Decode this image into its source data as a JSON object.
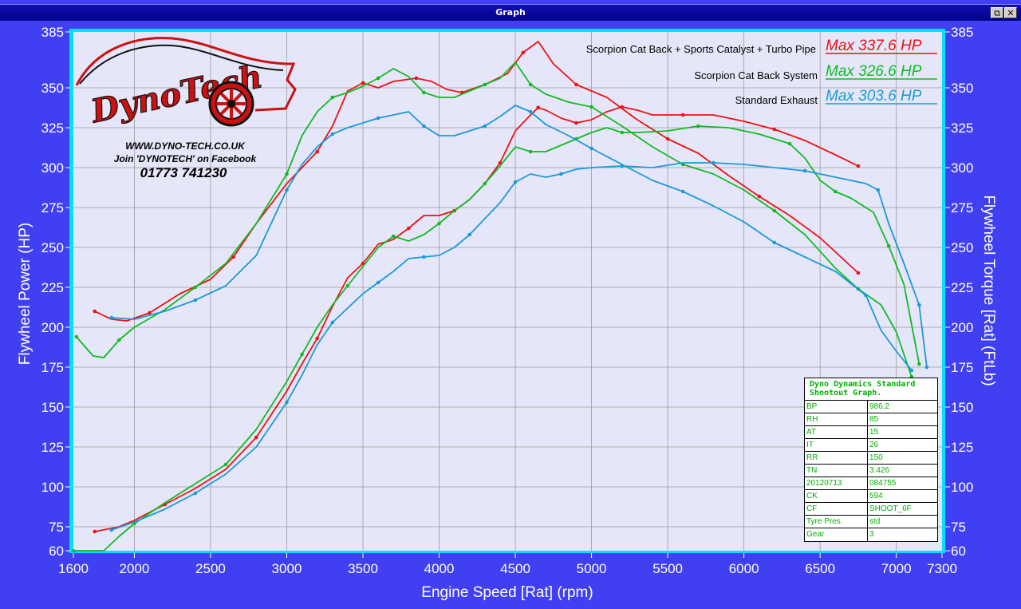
{
  "window": {
    "title": "Graph",
    "restore_glyph": "⧉",
    "close_glyph": "✕"
  },
  "colors": {
    "red": "#ee1111",
    "green": "#11bb22",
    "blue": "#1a9ad8",
    "plot_bg": "#e6e6fa",
    "frame": "#00e0ff"
  },
  "logo": {
    "brand_text": "DynoTech",
    "website": "WWW.DYNO-TECH.CO.UK",
    "facebook": "Join 'DYNOTECH' on Facebook",
    "phone": "01773 741230"
  },
  "info_box": {
    "title_line1": "Dyno Dynamics Standard",
    "title_line2": "Shootout Graph.",
    "rows": [
      [
        "BP",
        "986.2"
      ],
      [
        "RH",
        "85"
      ],
      [
        "AT",
        "15"
      ],
      [
        "IT",
        "26"
      ],
      [
        "RR",
        "150"
      ],
      [
        "TN",
        "3.426"
      ],
      [
        "20120713",
        "084755"
      ],
      [
        "CK",
        "594"
      ],
      [
        "CF",
        "SHOOT_6F"
      ],
      [
        "Tyre Pres.",
        "std"
      ],
      [
        "Gear",
        "3"
      ]
    ]
  },
  "chart_data": {
    "type": "line",
    "xlabel": "Engine Speed [Rat] (rpm)",
    "ylabel_left": "Flywheel Power (HP)",
    "ylabel_right": "Flywheel Torque [Rat] (FtLb)",
    "xlim": [
      1600,
      7300
    ],
    "ylim": [
      60,
      385
    ],
    "xticks": [
      1600,
      2000,
      2500,
      3000,
      3500,
      4000,
      4500,
      5000,
      5500,
      6000,
      6500,
      7000,
      7300
    ],
    "yticks": [
      60,
      75,
      100,
      125,
      150,
      175,
      200,
      225,
      250,
      275,
      300,
      325,
      350,
      385
    ],
    "series": [
      {
        "name": "Scorpion Cat Back + Sports Catalyst + Turbo Pipe",
        "max_label": "Max 337.6 HP",
        "color": "#ee1111",
        "power": [
          [
            1740,
            72
          ],
          [
            1900,
            75
          ],
          [
            2000,
            79
          ],
          [
            2200,
            89
          ],
          [
            2400,
            99
          ],
          [
            2600,
            111
          ],
          [
            2800,
            131
          ],
          [
            3000,
            160
          ],
          [
            3100,
            177
          ],
          [
            3200,
            193
          ],
          [
            3300,
            213
          ],
          [
            3400,
            231
          ],
          [
            3500,
            240
          ],
          [
            3600,
            252
          ],
          [
            3700,
            255
          ],
          [
            3800,
            262
          ],
          [
            3900,
            270
          ],
          [
            4000,
            270
          ],
          [
            4100,
            273
          ],
          [
            4200,
            280
          ],
          [
            4300,
            290
          ],
          [
            4400,
            303
          ],
          [
            4500,
            323
          ],
          [
            4600,
            333
          ],
          [
            4650,
            337.6
          ],
          [
            4700,
            336
          ],
          [
            4800,
            331
          ],
          [
            4900,
            328
          ],
          [
            5000,
            330
          ],
          [
            5100,
            335
          ],
          [
            5200,
            338
          ],
          [
            5300,
            336
          ],
          [
            5400,
            333
          ],
          [
            5600,
            333
          ],
          [
            5800,
            333
          ],
          [
            6000,
            329
          ],
          [
            6200,
            324
          ],
          [
            6400,
            317
          ],
          [
            6600,
            308
          ],
          [
            6750,
            301
          ]
        ],
        "torque": [
          [
            1740,
            210
          ],
          [
            1850,
            205
          ],
          [
            1950,
            204
          ],
          [
            2100,
            209
          ],
          [
            2300,
            221
          ],
          [
            2500,
            230
          ],
          [
            2650,
            244
          ],
          [
            2800,
            265
          ],
          [
            3000,
            290
          ],
          [
            3200,
            310
          ],
          [
            3300,
            326
          ],
          [
            3400,
            348
          ],
          [
            3500,
            353
          ],
          [
            3600,
            350
          ],
          [
            3700,
            354
          ],
          [
            3850,
            356
          ],
          [
            3950,
            354
          ],
          [
            4050,
            349
          ],
          [
            4150,
            347
          ],
          [
            4300,
            352
          ],
          [
            4450,
            359
          ],
          [
            4550,
            372
          ],
          [
            4650,
            379
          ],
          [
            4750,
            365
          ],
          [
            4900,
            352
          ],
          [
            5100,
            344
          ],
          [
            5300,
            330
          ],
          [
            5500,
            318
          ],
          [
            5700,
            309
          ],
          [
            5900,
            295
          ],
          [
            6100,
            282
          ],
          [
            6300,
            270
          ],
          [
            6500,
            256
          ],
          [
            6750,
            234
          ]
        ]
      },
      {
        "name": "Scorpion Cat Back System",
        "max_label": "Max 326.6 HP",
        "color": "#11bb22",
        "power": [
          [
            1600,
            60
          ],
          [
            1800,
            60
          ],
          [
            1900,
            69
          ],
          [
            2000,
            77
          ],
          [
            2200,
            90
          ],
          [
            2400,
            102
          ],
          [
            2600,
            114
          ],
          [
            2800,
            136
          ],
          [
            3000,
            166
          ],
          [
            3100,
            183
          ],
          [
            3200,
            200
          ],
          [
            3300,
            214
          ],
          [
            3400,
            226
          ],
          [
            3500,
            238
          ],
          [
            3600,
            250
          ],
          [
            3700,
            257
          ],
          [
            3800,
            254
          ],
          [
            3900,
            258
          ],
          [
            4000,
            265
          ],
          [
            4100,
            273
          ],
          [
            4200,
            280
          ],
          [
            4300,
            290
          ],
          [
            4400,
            301
          ],
          [
            4500,
            313
          ],
          [
            4600,
            310
          ],
          [
            4700,
            310
          ],
          [
            4800,
            314
          ],
          [
            4900,
            318
          ],
          [
            5000,
            322
          ],
          [
            5100,
            325
          ],
          [
            5200,
            322
          ],
          [
            5300,
            322
          ],
          [
            5500,
            323
          ],
          [
            5700,
            326
          ],
          [
            5900,
            325
          ],
          [
            6100,
            321
          ],
          [
            6300,
            315
          ],
          [
            6400,
            306
          ],
          [
            6500,
            292
          ],
          [
            6600,
            285
          ],
          [
            6700,
            281
          ],
          [
            6850,
            272
          ],
          [
            6950,
            251
          ],
          [
            7050,
            227
          ],
          [
            7150,
            177
          ]
        ],
        "torque": [
          [
            1620,
            194
          ],
          [
            1730,
            182
          ],
          [
            1800,
            181
          ],
          [
            1900,
            192
          ],
          [
            2000,
            200
          ],
          [
            2200,
            211
          ],
          [
            2400,
            225
          ],
          [
            2600,
            240
          ],
          [
            2800,
            265
          ],
          [
            3000,
            296
          ],
          [
            3100,
            320
          ],
          [
            3200,
            335
          ],
          [
            3300,
            344
          ],
          [
            3400,
            347
          ],
          [
            3500,
            351
          ],
          [
            3600,
            356
          ],
          [
            3700,
            362
          ],
          [
            3800,
            357
          ],
          [
            3900,
            347
          ],
          [
            4000,
            344
          ],
          [
            4100,
            344
          ],
          [
            4300,
            352
          ],
          [
            4400,
            356
          ],
          [
            4500,
            366
          ],
          [
            4600,
            352
          ],
          [
            4700,
            346
          ],
          [
            4850,
            341
          ],
          [
            5000,
            338
          ],
          [
            5200,
            326
          ],
          [
            5400,
            313
          ],
          [
            5600,
            302
          ],
          [
            5800,
            296
          ],
          [
            6000,
            286
          ],
          [
            6200,
            273
          ],
          [
            6400,
            258
          ],
          [
            6600,
            237
          ],
          [
            6750,
            224
          ],
          [
            6900,
            214
          ],
          [
            7000,
            197
          ],
          [
            7100,
            169
          ]
        ]
      },
      {
        "name": "Standard Exhaust",
        "max_label": "Max 303.6 HP",
        "color": "#1a9ad8",
        "power": [
          [
            1850,
            73
          ],
          [
            2000,
            78
          ],
          [
            2200,
            86
          ],
          [
            2400,
            96
          ],
          [
            2600,
            108
          ],
          [
            2800,
            125
          ],
          [
            3000,
            153
          ],
          [
            3100,
            170
          ],
          [
            3200,
            189
          ],
          [
            3300,
            203
          ],
          [
            3400,
            212
          ],
          [
            3500,
            221
          ],
          [
            3600,
            228
          ],
          [
            3700,
            235
          ],
          [
            3800,
            243
          ],
          [
            3900,
            244
          ],
          [
            4000,
            245
          ],
          [
            4100,
            250
          ],
          [
            4200,
            258
          ],
          [
            4300,
            268
          ],
          [
            4400,
            278
          ],
          [
            4500,
            291
          ],
          [
            4600,
            296
          ],
          [
            4700,
            294
          ],
          [
            4800,
            296
          ],
          [
            4900,
            299
          ],
          [
            5000,
            300
          ],
          [
            5200,
            301
          ],
          [
            5400,
            300
          ],
          [
            5600,
            303
          ],
          [
            5800,
            303
          ],
          [
            6000,
            302
          ],
          [
            6200,
            300
          ],
          [
            6400,
            298
          ],
          [
            6600,
            294
          ],
          [
            6800,
            290
          ],
          [
            6880,
            286
          ],
          [
            6950,
            265
          ],
          [
            7050,
            240
          ],
          [
            7150,
            214
          ],
          [
            7200,
            175
          ]
        ],
        "torque": [
          [
            1850,
            206
          ],
          [
            2000,
            205
          ],
          [
            2200,
            210
          ],
          [
            2400,
            217
          ],
          [
            2600,
            226
          ],
          [
            2800,
            245
          ],
          [
            3000,
            286
          ],
          [
            3100,
            302
          ],
          [
            3200,
            313
          ],
          [
            3300,
            321
          ],
          [
            3400,
            325
          ],
          [
            3500,
            328
          ],
          [
            3600,
            331
          ],
          [
            3700,
            333
          ],
          [
            3800,
            335
          ],
          [
            3900,
            326
          ],
          [
            4000,
            320
          ],
          [
            4100,
            320
          ],
          [
            4300,
            326
          ],
          [
            4400,
            332
          ],
          [
            4500,
            339
          ],
          [
            4600,
            335
          ],
          [
            4700,
            327
          ],
          [
            4850,
            320
          ],
          [
            5000,
            312
          ],
          [
            5200,
            302
          ],
          [
            5400,
            292
          ],
          [
            5600,
            285
          ],
          [
            5800,
            276
          ],
          [
            6000,
            266
          ],
          [
            6200,
            253
          ],
          [
            6400,
            244
          ],
          [
            6600,
            235
          ],
          [
            6800,
            220
          ],
          [
            6900,
            198
          ],
          [
            7000,
            185
          ],
          [
            7100,
            173
          ]
        ]
      }
    ]
  }
}
